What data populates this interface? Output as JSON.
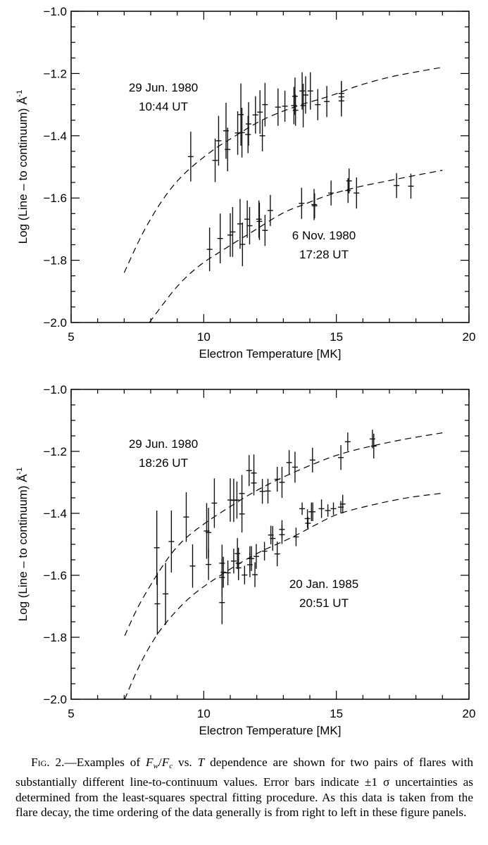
{
  "chart_data": [
    {
      "type": "scatter",
      "panel": "top",
      "xlabel": "Electron Temperature [MK]",
      "ylabel": "Log (Line – to continuum) Å",
      "ylabel_sup": "-1",
      "xlim": [
        5,
        20
      ],
      "ylim": [
        -2.0,
        -1.0
      ],
      "xticks": [
        "5",
        "10",
        "15",
        "20"
      ],
      "xtick_values": [
        5,
        10,
        15,
        20
      ],
      "yticks": [
        "−2.0",
        "−1.8",
        "−1.6",
        "−1.4",
        "−1.2",
        "−1.0"
      ],
      "ytick_values": [
        -2.0,
        -1.8,
        -1.6,
        -1.4,
        -1.2,
        -1.0
      ],
      "series": [
        {
          "name": "29 Jun. 1980 10:44 UT",
          "label_line1": "29 Jun. 1980",
          "label_line2": "10:44 UT",
          "points": [
            [
              9.51,
              -1.467,
              0.08
            ],
            [
              10.43,
              -1.479,
              0.07
            ],
            [
              10.56,
              -1.416,
              0.08
            ],
            [
              10.84,
              -1.384,
              0.09
            ],
            [
              10.9,
              -1.444,
              0.07
            ],
            [
              11.28,
              -1.391,
              0.07
            ],
            [
              11.4,
              -1.332,
              0.1
            ],
            [
              11.44,
              -1.39,
              0.08
            ],
            [
              11.67,
              -1.396,
              0.06
            ],
            [
              11.69,
              -1.362,
              0.07
            ],
            [
              11.95,
              -1.333,
              0.06
            ],
            [
              12.12,
              -1.324,
              0.07
            ],
            [
              12.21,
              -1.4,
              0.05
            ],
            [
              12.31,
              -1.3,
              0.07
            ],
            [
              12.8,
              -1.308,
              0.06
            ],
            [
              13.06,
              -1.305,
              0.05
            ],
            [
              13.4,
              -1.303,
              0.06
            ],
            [
              13.44,
              -1.273,
              0.06
            ],
            [
              13.46,
              -1.318,
              0.05
            ],
            [
              13.71,
              -1.256,
              0.06
            ],
            [
              13.75,
              -1.303,
              0.07
            ],
            [
              13.84,
              -1.269,
              0.06
            ],
            [
              14.02,
              -1.256,
              0.06
            ],
            [
              14.3,
              -1.3,
              0.05
            ],
            [
              14.64,
              -1.29,
              0.05
            ],
            [
              15.19,
              -1.264,
              0.04
            ],
            [
              15.19,
              -1.275,
              0.05
            ],
            [
              15.19,
              -1.288,
              0.05
            ]
          ],
          "fit": [
            [
              7.0,
              -1.84
            ],
            [
              7.72,
              -1.71
            ],
            [
              8.5,
              -1.6
            ],
            [
              9.27,
              -1.522
            ],
            [
              10.29,
              -1.45
            ],
            [
              11.2,
              -1.4
            ],
            [
              12.24,
              -1.348
            ],
            [
              13.5,
              -1.305
            ],
            [
              14.73,
              -1.273
            ],
            [
              15.8,
              -1.24
            ],
            [
              16.94,
              -1.213
            ],
            [
              18.0,
              -1.195
            ],
            [
              19.0,
              -1.18
            ]
          ]
        },
        {
          "name": "6 Nov. 1980 17:28 UT",
          "label_line1": "6 Nov. 1980",
          "label_line2": "17:28 UT",
          "points": [
            [
              10.22,
              -1.765,
              0.07
            ],
            [
              10.62,
              -1.73,
              0.08
            ],
            [
              11.0,
              -1.719,
              0.07
            ],
            [
              11.09,
              -1.709,
              0.08
            ],
            [
              11.37,
              -1.683,
              0.08
            ],
            [
              11.46,
              -1.749,
              0.07
            ],
            [
              11.64,
              -1.668,
              0.06
            ],
            [
              11.73,
              -1.689,
              0.06
            ],
            [
              12.08,
              -1.668,
              0.06
            ],
            [
              12.1,
              -1.675,
              0.06
            ],
            [
              12.31,
              -1.704,
              0.05
            ],
            [
              12.51,
              -1.64,
              0.05
            ],
            [
              13.69,
              -1.617,
              0.05
            ],
            [
              14.16,
              -1.621,
              0.05
            ],
            [
              14.18,
              -1.625,
              0.04
            ],
            [
              14.8,
              -1.584,
              0.04
            ],
            [
              15.44,
              -1.576,
              0.04
            ],
            [
              15.48,
              -1.545,
              0.04
            ],
            [
              15.76,
              -1.584,
              0.05
            ],
            [
              17.27,
              -1.56,
              0.04
            ],
            [
              17.81,
              -1.562,
              0.04
            ]
          ],
          "fit": [
            [
              7.95,
              -2.0
            ],
            [
              8.96,
              -1.888
            ],
            [
              9.8,
              -1.82
            ],
            [
              10.65,
              -1.771
            ],
            [
              11.8,
              -1.71
            ],
            [
              12.95,
              -1.65
            ],
            [
              13.8,
              -1.62
            ],
            [
              14.73,
              -1.59
            ],
            [
              15.8,
              -1.565
            ],
            [
              16.94,
              -1.545
            ],
            [
              18.0,
              -1.527
            ],
            [
              19.0,
              -1.511
            ]
          ]
        }
      ]
    },
    {
      "type": "scatter",
      "panel": "bottom",
      "xlabel": "Electron Temperature [MK]",
      "ylabel": "Log (Line – to continuum) Å",
      "ylabel_sup": "-1",
      "xlim": [
        5,
        20
      ],
      "ylim": [
        -2.0,
        -1.0
      ],
      "xticks": [
        "5",
        "10",
        "15",
        "20"
      ],
      "xtick_values": [
        5,
        10,
        15,
        20
      ],
      "yticks": [
        "−2.0",
        "−1.8",
        "−1.6",
        "−1.4",
        "−1.2",
        "−1.0"
      ],
      "ytick_values": [
        -2.0,
        -1.8,
        -1.6,
        -1.4,
        -1.2,
        -1.0
      ],
      "series": [
        {
          "name": "29 Jun. 1980 18:26 UT",
          "label_line1": "29 Jun. 1980",
          "label_line2": "18:26 UT",
          "points": [
            [
              8.23,
              -1.511,
              0.12
            ],
            [
              8.25,
              -1.692,
              0.1
            ],
            [
              8.56,
              -1.66,
              0.1
            ],
            [
              8.78,
              -1.491,
              0.1
            ],
            [
              9.34,
              -1.412,
              0.08
            ],
            [
              9.58,
              -1.57,
              0.07
            ],
            [
              10.11,
              -1.457,
              0.09
            ],
            [
              10.18,
              -1.462,
              0.08
            ],
            [
              10.18,
              -1.565,
              0.05
            ],
            [
              10.4,
              -1.367,
              0.08
            ],
            [
              11.0,
              -1.357,
              0.07
            ],
            [
              11.13,
              -1.358,
              0.07
            ],
            [
              11.25,
              -1.357,
              0.06
            ],
            [
              11.44,
              -1.336,
              0.06
            ],
            [
              11.44,
              -1.402,
              0.06
            ],
            [
              11.71,
              -1.262,
              0.05
            ],
            [
              11.89,
              -1.27,
              0.06
            ],
            [
              11.89,
              -1.302,
              0.04
            ],
            [
              12.21,
              -1.329,
              0.04
            ],
            [
              12.42,
              -1.328,
              0.04
            ],
            [
              12.77,
              -1.29,
              0.04
            ],
            [
              12.95,
              -1.3,
              0.05
            ],
            [
              13.22,
              -1.236,
              0.04
            ],
            [
              13.44,
              -1.251,
              0.05
            ],
            [
              14.1,
              -1.228,
              0.04
            ],
            [
              15.17,
              -1.22,
              0.04
            ],
            [
              15.43,
              -1.169,
              0.03
            ],
            [
              16.36,
              -1.16,
              0.03
            ],
            [
              16.41,
              -1.183,
              0.04
            ]
          ],
          "fit": [
            [
              7.02,
              -1.795
            ],
            [
              7.6,
              -1.69
            ],
            [
              8.52,
              -1.561
            ],
            [
              9.2,
              -1.49
            ],
            [
              10.03,
              -1.433
            ],
            [
              11.0,
              -1.378
            ],
            [
              11.98,
              -1.327
            ],
            [
              13.0,
              -1.283
            ],
            [
              14.19,
              -1.239
            ],
            [
              15.0,
              -1.213
            ],
            [
              15.97,
              -1.19
            ],
            [
              17.5,
              -1.162
            ],
            [
              19.0,
              -1.14
            ]
          ]
        },
        {
          "name": "20 Jan. 1985 20:51 UT",
          "label_line1": "20 Jan. 1985",
          "label_line2": "20:51 UT",
          "points": [
            [
              10.69,
              -1.561,
              0.06
            ],
            [
              10.69,
              -1.607,
              0.06
            ],
            [
              10.69,
              -1.688,
              0.07
            ],
            [
              10.74,
              -1.59,
              0.05
            ],
            [
              10.91,
              -1.592,
              0.04
            ],
            [
              11.13,
              -1.554,
              0.04
            ],
            [
              11.27,
              -1.53,
              0.05
            ],
            [
              11.31,
              -1.561,
              0.05
            ],
            [
              11.31,
              -1.576,
              0.04
            ],
            [
              11.54,
              -1.599,
              0.03
            ],
            [
              11.74,
              -1.546,
              0.04
            ],
            [
              11.8,
              -1.546,
              0.04
            ],
            [
              11.74,
              -1.566,
              0.04
            ],
            [
              11.93,
              -1.598,
              0.04
            ],
            [
              11.98,
              -1.539,
              0.04
            ],
            [
              12.29,
              -1.522,
              0.03
            ],
            [
              12.53,
              -1.47,
              0.03
            ],
            [
              12.6,
              -1.481,
              0.04
            ],
            [
              12.77,
              -1.531,
              0.04
            ],
            [
              12.95,
              -1.452,
              0.03
            ],
            [
              12.95,
              -1.469,
              0.03
            ],
            [
              13.48,
              -1.476,
              0.03
            ],
            [
              13.71,
              -1.385,
              0.02
            ],
            [
              13.91,
              -1.417,
              0.03
            ],
            [
              13.93,
              -1.432,
              0.02
            ],
            [
              14.06,
              -1.395,
              0.03
            ],
            [
              14.11,
              -1.395,
              0.03
            ],
            [
              14.44,
              -1.385,
              0.03
            ],
            [
              14.68,
              -1.391,
              0.02
            ],
            [
              14.89,
              -1.385,
              0.02
            ],
            [
              15.17,
              -1.38,
              0.02
            ],
            [
              15.24,
              -1.37,
              0.03
            ]
          ],
          "fit": [
            [
              7.02,
              -2.0
            ],
            [
              7.5,
              -1.905
            ],
            [
              7.99,
              -1.826
            ],
            [
              8.56,
              -1.755
            ],
            [
              9.5,
              -1.67
            ],
            [
              10.65,
              -1.599
            ],
            [
              12.0,
              -1.53
            ],
            [
              13.31,
              -1.478
            ],
            [
              14.2,
              -1.438
            ],
            [
              15.08,
              -1.402
            ],
            [
              16.4,
              -1.372
            ],
            [
              17.74,
              -1.349
            ],
            [
              19.0,
              -1.335
            ]
          ]
        }
      ]
    }
  ],
  "caption": {
    "fig_label": "Fig. 2.",
    "dash": "—Examples of ",
    "fw": "F",
    "fw_sub": "w",
    "slash": "/",
    "fc": "F",
    "fc_sub": "c",
    "vs": " vs. ",
    "t": "T",
    "rest": " dependence are shown for two pairs of flares with substantially different line-to-continuum values. Error bars indicate ±1 σ uncertainties as determined from the least-squares spectral fitting procedure. As this data is taken from the flare decay, the time ordering of the data generally is from right to left in these figure panels."
  }
}
